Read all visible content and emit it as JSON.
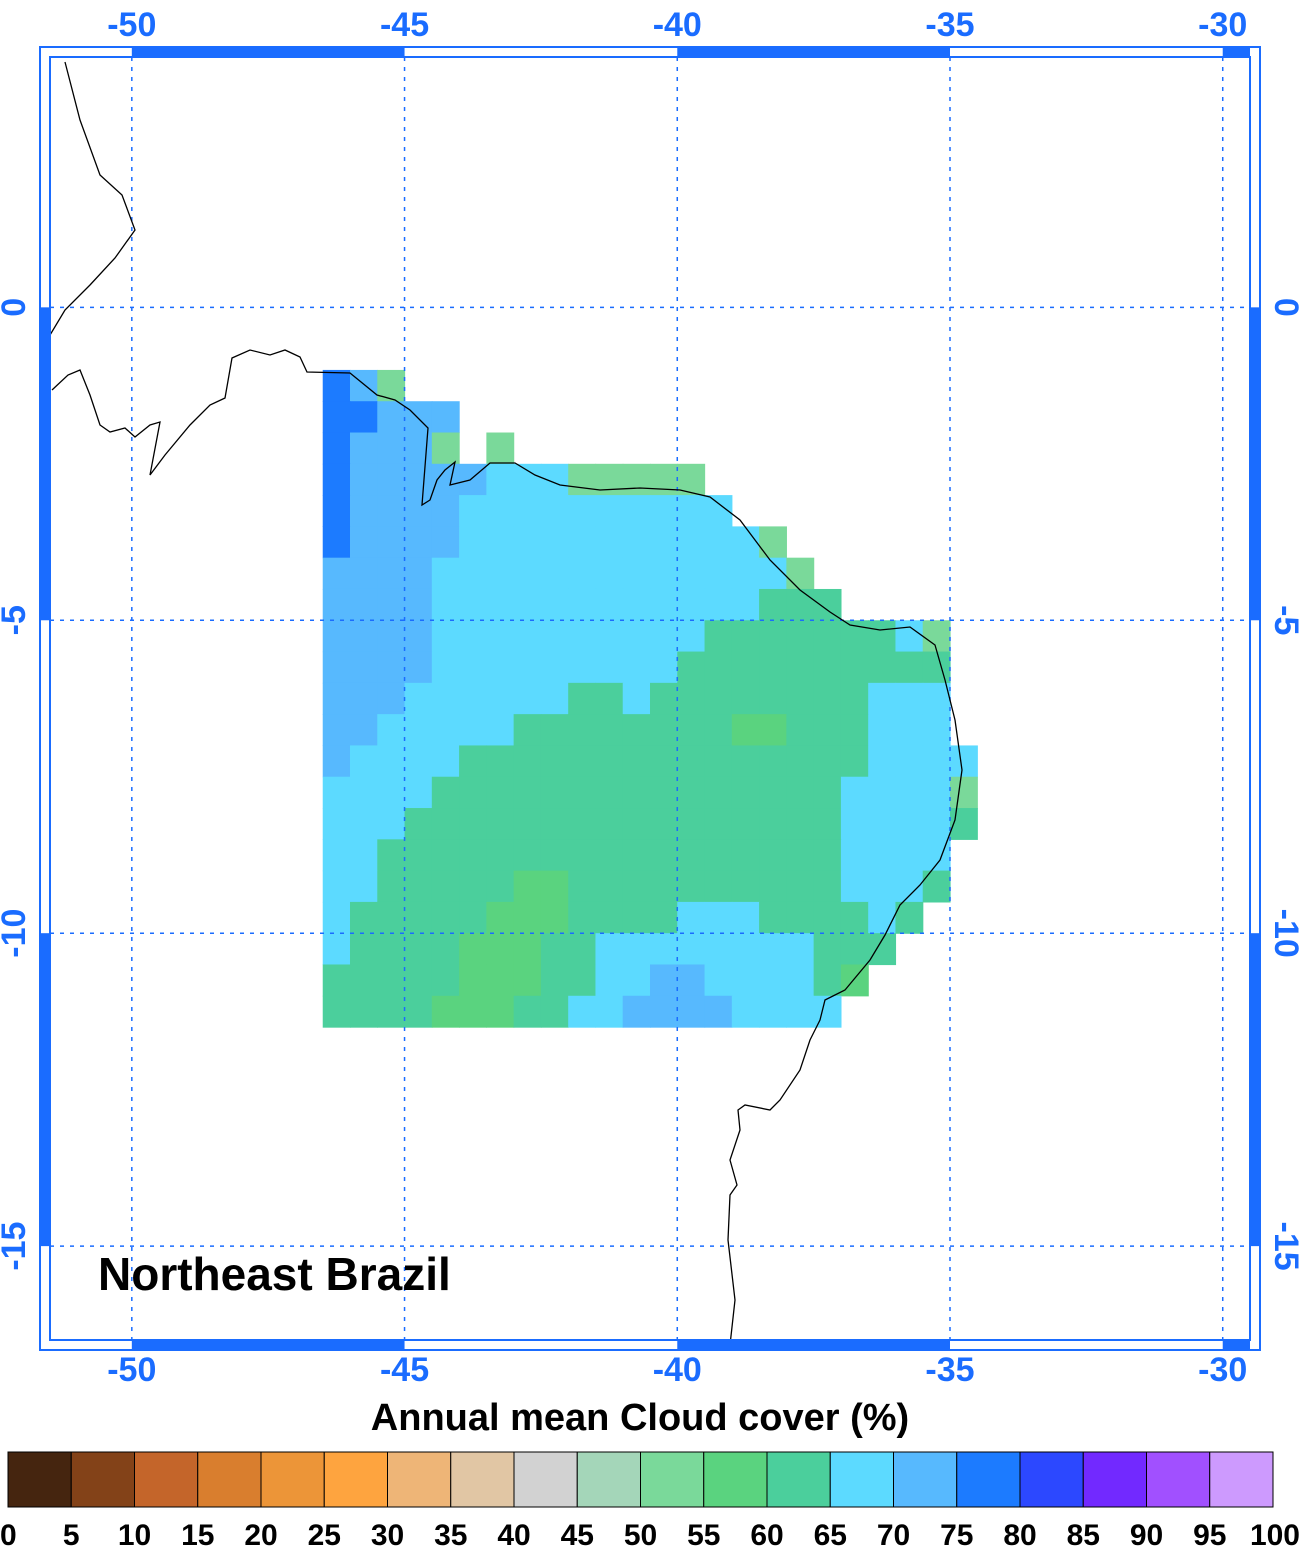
{
  "chart_data": {
    "type": "gridmap",
    "title": "Northeast Brazil",
    "colorbar_label": "Annual mean Cloud cover (%)",
    "xlim": [
      -51.5,
      -29.5
    ],
    "ylim": [
      -16.5,
      4
    ],
    "xticks": [
      -50,
      -45,
      -40,
      -35,
      -30
    ],
    "yticks": [
      0,
      -5,
      -10,
      -15
    ],
    "grid": true,
    "axis_color": "#1a6cff",
    "lon": [
      -46.25,
      -45.75,
      -45.25,
      -44.75,
      -44.25,
      -43.75,
      -43.25,
      -42.75,
      -42.25,
      -41.75,
      -41.25,
      -40.75,
      -40.25,
      -39.75,
      -39.25,
      -38.75,
      -38.25,
      -37.75,
      -37.25,
      -36.75,
      -36.25,
      -35.75,
      -35.25,
      -34.75
    ],
    "lat": [
      -1.25,
      -1.75,
      -2.25,
      -2.75,
      -3.25,
      -3.75,
      -4.25,
      -4.75,
      -5.25,
      -5.75,
      -6.25,
      -6.75,
      -7.25,
      -7.75,
      -8.25,
      -8.75,
      -9.25,
      -9.75,
      -10.25,
      -10.75,
      -11.25
    ],
    "values": [
      [
        77,
        72,
        52,
        null,
        null,
        null,
        null,
        null,
        null,
        null,
        null,
        null,
        null,
        null,
        null,
        null,
        null,
        null,
        null,
        null,
        null,
        null,
        null,
        null
      ],
      [
        77,
        77,
        72,
        72,
        72,
        null,
        null,
        null,
        null,
        null,
        null,
        null,
        null,
        null,
        null,
        null,
        null,
        null,
        null,
        null,
        null,
        null,
        null,
        null
      ],
      [
        77,
        72,
        72,
        72,
        52,
        null,
        52,
        null,
        null,
        null,
        null,
        null,
        null,
        null,
        null,
        null,
        null,
        null,
        null,
        null,
        null,
        null,
        null,
        null
      ],
      [
        77,
        72,
        72,
        72,
        72,
        72,
        67,
        67,
        67,
        52,
        52,
        52,
        52,
        52,
        null,
        null,
        null,
        null,
        null,
        null,
        null,
        null,
        null,
        null
      ],
      [
        77,
        72,
        72,
        72,
        72,
        67,
        67,
        67,
        67,
        67,
        67,
        67,
        67,
        67,
        67,
        null,
        null,
        null,
        null,
        null,
        null,
        null,
        null,
        null
      ],
      [
        77,
        72,
        72,
        72,
        72,
        67,
        67,
        67,
        67,
        67,
        67,
        67,
        67,
        67,
        67,
        67,
        52,
        null,
        null,
        null,
        null,
        null,
        null,
        null
      ],
      [
        72,
        72,
        72,
        72,
        67,
        67,
        67,
        67,
        67,
        67,
        67,
        67,
        67,
        67,
        67,
        67,
        67,
        52,
        null,
        null,
        null,
        null,
        null,
        null
      ],
      [
        72,
        72,
        72,
        72,
        67,
        67,
        67,
        67,
        67,
        67,
        67,
        67,
        67,
        67,
        67,
        67,
        62,
        62,
        62,
        null,
        null,
        null,
        null,
        null
      ],
      [
        72,
        72,
        72,
        72,
        67,
        67,
        67,
        67,
        67,
        67,
        67,
        67,
        67,
        67,
        62,
        62,
        62,
        62,
        62,
        62,
        62,
        67,
        52,
        null
      ],
      [
        72,
        72,
        72,
        72,
        67,
        67,
        67,
        67,
        67,
        67,
        67,
        67,
        67,
        62,
        62,
        62,
        62,
        62,
        62,
        62,
        62,
        62,
        62,
        null
      ],
      [
        72,
        72,
        72,
        67,
        67,
        67,
        67,
        67,
        67,
        62,
        62,
        67,
        62,
        62,
        62,
        62,
        62,
        62,
        62,
        62,
        67,
        67,
        67,
        null
      ],
      [
        72,
        72,
        67,
        67,
        67,
        67,
        67,
        62,
        62,
        62,
        62,
        62,
        62,
        62,
        62,
        57,
        57,
        62,
        62,
        62,
        67,
        67,
        67,
        null
      ],
      [
        72,
        67,
        67,
        67,
        67,
        62,
        62,
        62,
        62,
        62,
        62,
        62,
        62,
        62,
        62,
        62,
        62,
        62,
        62,
        62,
        67,
        67,
        67,
        67
      ],
      [
        67,
        67,
        67,
        67,
        62,
        62,
        62,
        62,
        62,
        62,
        62,
        62,
        62,
        62,
        62,
        62,
        62,
        62,
        62,
        67,
        67,
        67,
        67,
        52
      ],
      [
        67,
        67,
        67,
        62,
        62,
        62,
        62,
        62,
        62,
        62,
        62,
        62,
        62,
        62,
        62,
        62,
        62,
        62,
        62,
        67,
        67,
        67,
        67,
        62
      ],
      [
        67,
        67,
        62,
        62,
        62,
        62,
        62,
        62,
        62,
        62,
        62,
        62,
        62,
        62,
        62,
        62,
        62,
        62,
        62,
        67,
        67,
        67,
        67,
        null
      ],
      [
        67,
        67,
        62,
        62,
        62,
        62,
        62,
        57,
        57,
        62,
        62,
        62,
        62,
        62,
        62,
        62,
        62,
        62,
        62,
        67,
        67,
        67,
        62,
        null
      ],
      [
        67,
        62,
        62,
        62,
        62,
        62,
        57,
        57,
        57,
        62,
        62,
        62,
        62,
        67,
        67,
        67,
        62,
        62,
        62,
        62,
        67,
        62,
        null,
        null
      ],
      [
        67,
        62,
        62,
        62,
        62,
        57,
        57,
        57,
        62,
        62,
        67,
        67,
        67,
        67,
        67,
        67,
        67,
        67,
        62,
        62,
        62,
        null,
        null,
        null
      ],
      [
        62,
        62,
        62,
        62,
        62,
        57,
        57,
        57,
        62,
        62,
        67,
        67,
        72,
        72,
        67,
        67,
        67,
        67,
        62,
        57,
        null,
        null,
        null,
        null
      ],
      [
        62,
        62,
        62,
        62,
        57,
        57,
        57,
        62,
        62,
        67,
        67,
        72,
        72,
        72,
        72,
        67,
        67,
        67,
        67,
        null,
        null,
        null,
        null,
        null
      ]
    ],
    "levels": [
      0,
      5,
      10,
      15,
      20,
      25,
      30,
      35,
      40,
      45,
      50,
      55,
      60,
      65,
      70,
      75,
      80,
      85,
      90,
      95,
      100
    ],
    "colors": [
      "#45250f",
      "#834218",
      "#c4652a",
      "#d97e2e",
      "#ec9538",
      "#fea43f",
      "#eeb577",
      "#e1c6a4",
      "#d2d2d2",
      "#a4d6b9",
      "#7ad99a",
      "#5ad37f",
      "#4bcf9c",
      "#5cdaff",
      "#57b9fe",
      "#1c7bff",
      "#2c48ff",
      "#7229ff",
      "#a150ff",
      "#cd9afe"
    ]
  }
}
